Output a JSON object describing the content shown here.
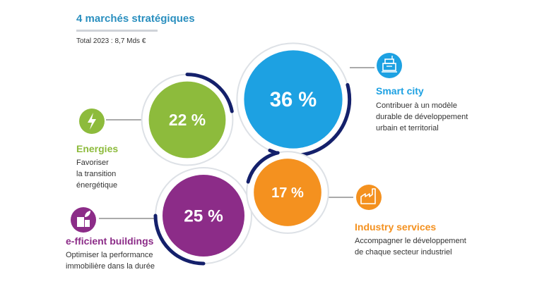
{
  "header": {
    "title": "4 marchés stratégiques",
    "total": "Total 2023 : 8,7 Mds €"
  },
  "colors": {
    "title": "#2a8fbf",
    "ring": "#dde1e6",
    "arc": "#14206b",
    "connector": "#555555"
  },
  "chart_data": {
    "type": "pie",
    "title": "4 marchés stratégiques",
    "subtitle": "Total 2023 : 8,7 Mds €",
    "unit": "%",
    "series": [
      {
        "key": "smart",
        "name": "Smart city",
        "value": 36,
        "label": "36 %",
        "color": "#1da1e2",
        "icon": "building-icon",
        "description": [
          "Contribuer à un modèle",
          "durable de développement",
          "urbain et territorial"
        ]
      },
      {
        "key": "energies",
        "name": "Energies",
        "value": 22,
        "label": "22 %",
        "color": "#8dbb3c",
        "icon": "lightning-icon",
        "description": [
          "Favoriser",
          "la transition",
          "énergétique"
        ]
      },
      {
        "key": "buildings",
        "name": "e-fficient buildings",
        "value": 25,
        "label": "25 %",
        "color": "#8c2c88",
        "icon": "city-leaf-icon",
        "description": [
          "Optimiser la performance",
          "immobilière dans la durée"
        ]
      },
      {
        "key": "industry",
        "name": "Industry services",
        "value": 17,
        "label": "17 %",
        "color": "#f4911f",
        "icon": "factory-icon",
        "description": [
          "Accompagner le développement",
          "de chaque secteur industriel"
        ]
      }
    ]
  }
}
